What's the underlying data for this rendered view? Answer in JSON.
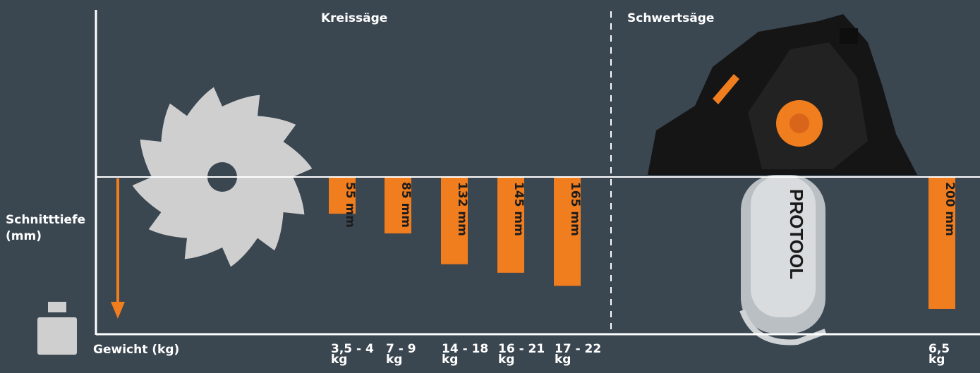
{
  "colors": {
    "background": "#3a4650",
    "bar": "#f07d1e",
    "axis": "#ffffff",
    "saw_blade": "#cfcfcf"
  },
  "icons": {
    "depth_arrow": "arrow-down-icon",
    "weight": "weight-icon",
    "blade": "circular-saw-blade-icon",
    "machine": "chainsaw-machine-icon"
  },
  "chart_data": {
    "type": "bar",
    "orientation": "vertical-downward",
    "ylabel": "Schnitttiefe (mm)",
    "xlabel": "Gewicht (kg)",
    "groups": [
      "Kreissäge",
      "Schwertsäge"
    ],
    "categories": [
      "3,5 - 4 kg",
      "7 - 9 kg",
      "14 - 18 kg",
      "16 - 21 kg",
      "17 - 22 kg",
      "6,5 kg"
    ],
    "tick_labels": [
      [
        "3,5 - 4",
        "kg"
      ],
      [
        "7 - 9",
        "kg"
      ],
      [
        "14 - 18",
        "kg"
      ],
      [
        "16 - 21",
        "kg"
      ],
      [
        "17 - 22",
        "kg"
      ],
      [
        "6,5",
        "kg"
      ]
    ],
    "values": [
      55,
      85,
      132,
      145,
      165,
      200
    ],
    "bar_groups": [
      "Kreissäge",
      "Kreissäge",
      "Kreissäge",
      "Kreissäge",
      "Kreissäge",
      "Schwertsäge"
    ],
    "data_labels": [
      "55 mm",
      "85 mm",
      "132 mm",
      "145 mm",
      "165 mm",
      "200 mm"
    ],
    "ylim": [
      0,
      200
    ],
    "grid": false
  }
}
